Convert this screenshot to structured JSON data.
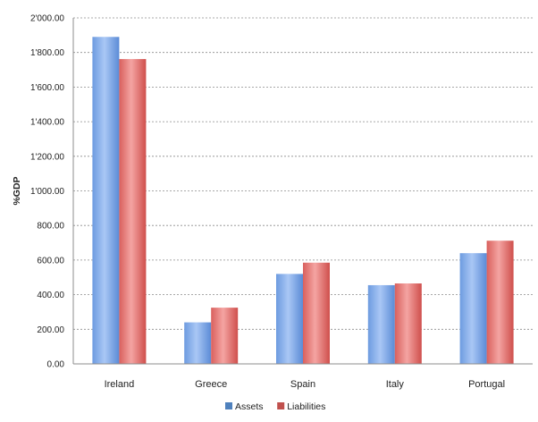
{
  "chart_data": {
    "type": "bar",
    "title": "",
    "xlabel": "",
    "ylabel": "%GDP",
    "ylim": [
      0,
      2000
    ],
    "yticks": [
      "0.00",
      "200.00",
      "400.00",
      "600.00",
      "800.00",
      "1'000.00",
      "1'200.00",
      "1'400.00",
      "1'600.00",
      "1'800.00",
      "2'000.00"
    ],
    "categories": [
      "Ireland",
      "Greece",
      "Spain",
      "Italy",
      "Portugal"
    ],
    "series": [
      {
        "name": "Assets",
        "values": [
          1890,
          240,
          520,
          455,
          640
        ],
        "color": "#4f81bd"
      },
      {
        "name": "Liabilities",
        "values": [
          1762,
          325,
          585,
          465,
          712
        ],
        "color": "#c0504d"
      }
    ],
    "grid": true,
    "legend_position": "bottom"
  }
}
